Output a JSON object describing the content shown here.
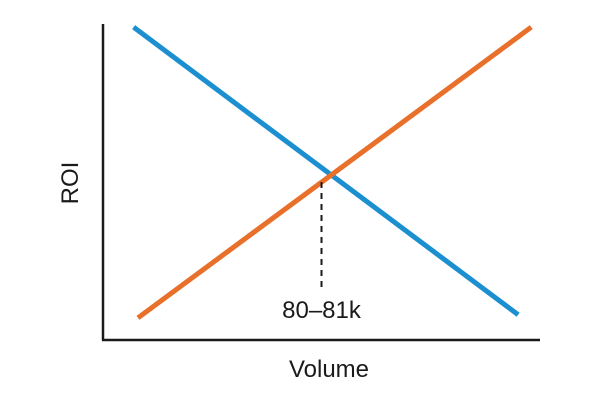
{
  "chart_data": {
    "type": "line",
    "title": "",
    "xlabel": "Volume",
    "ylabel": "ROI",
    "grid": false,
    "legend": "none",
    "xlim": [
      0,
      1
    ],
    "ylim": [
      0,
      1
    ],
    "series": [
      {
        "color": "#1b8fcf",
        "x": [
          0.07,
          0.95
        ],
        "y": [
          0.99,
          0.08
        ]
      },
      {
        "color": "#e8702a",
        "x": [
          0.08,
          0.98
        ],
        "y": [
          0.07,
          0.99
        ]
      }
    ],
    "annotation": {
      "text": "80–81k",
      "x": 0.5,
      "y": 0.5
    }
  }
}
